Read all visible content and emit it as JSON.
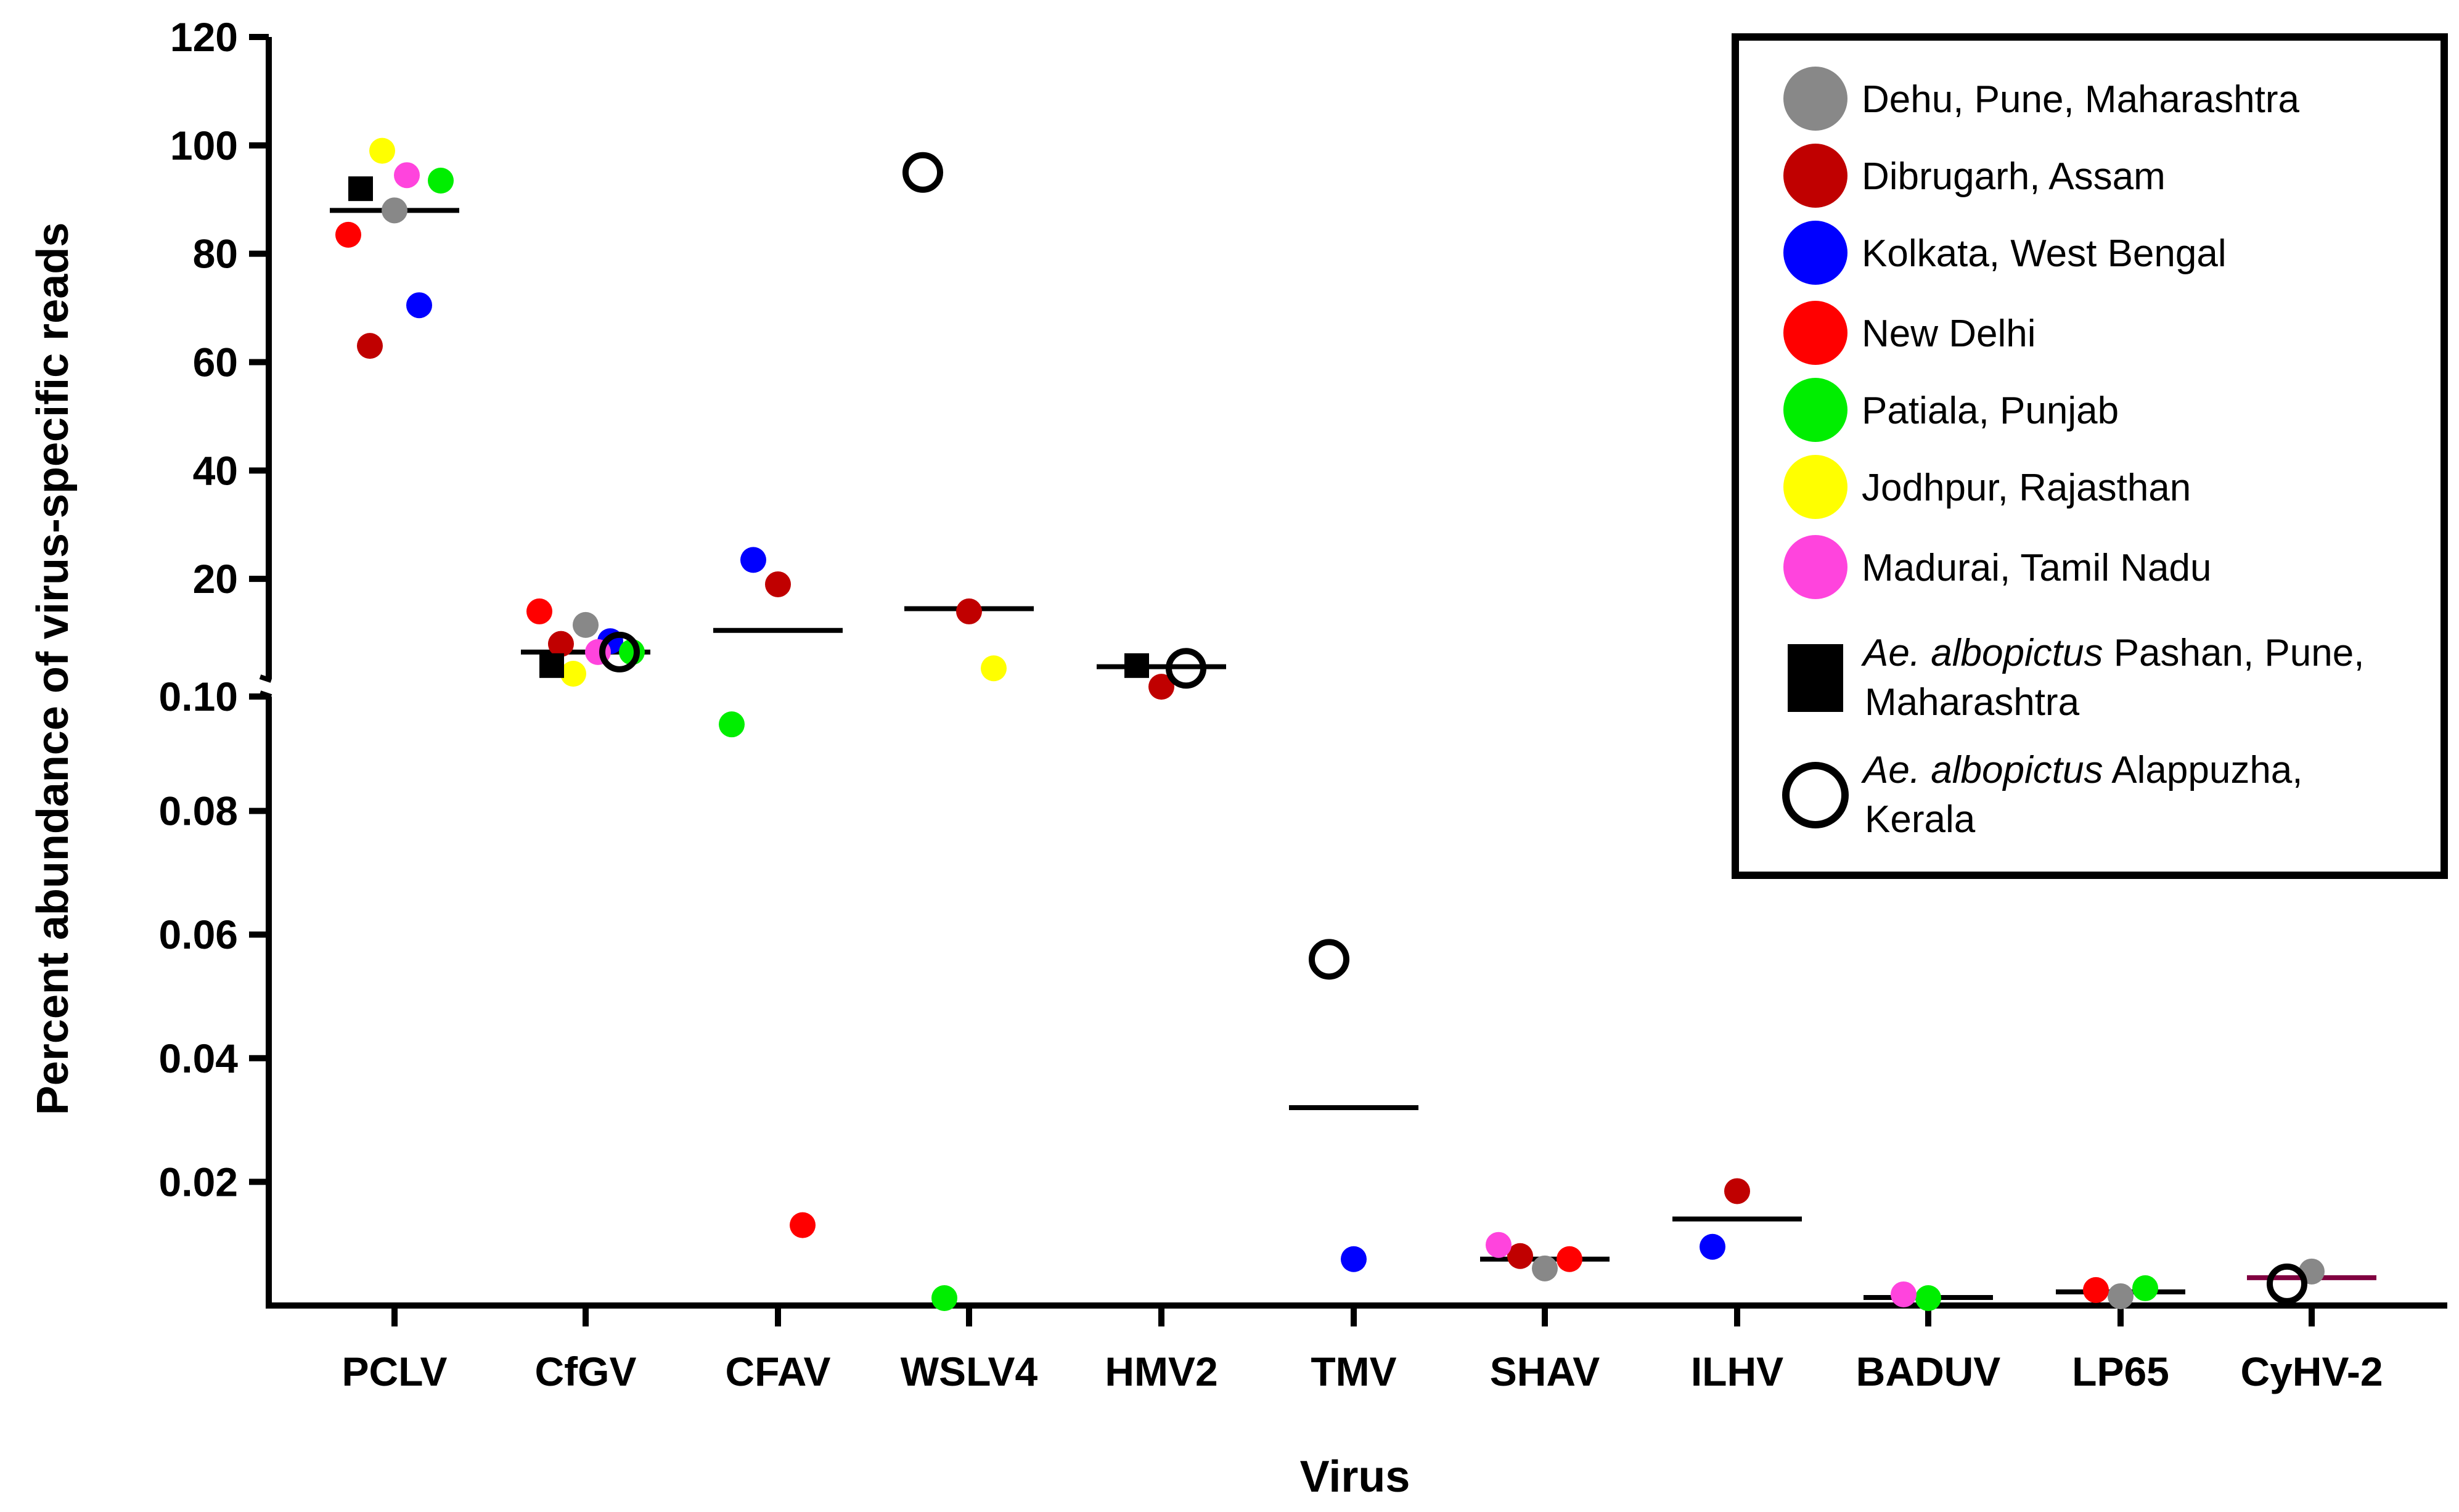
{
  "chart_data": {
    "type": "scatter",
    "title": "",
    "xlabel": "Virus",
    "ylabel": "Percent abundance of virus-specific reads",
    "axis_break": {
      "lower_range": [
        0,
        0.1
      ],
      "upper_range": [
        0.1,
        120
      ]
    },
    "y_ticks_lower": [
      "0.02",
      "0.04",
      "0.06",
      "0.08",
      "0.10"
    ],
    "y_ticks_upper": [
      "20",
      "40",
      "60",
      "80",
      "100",
      "120"
    ],
    "categories": [
      "PCLV",
      "CfGV",
      "CFAV",
      "WSLV4",
      "HMV2",
      "TMV",
      "SHAV",
      "ILHV",
      "BADUV",
      "LP65",
      "CyHV-2"
    ],
    "series": [
      {
        "name": "Dehu, Pune, Maharashtra",
        "color": "#888888",
        "marker": "circle",
        "points": [
          {
            "cat": "PCLV",
            "y": 88
          },
          {
            "cat": "CfGV",
            "y": 11.5
          },
          {
            "cat": "SHAV",
            "y": 0.006
          },
          {
            "cat": "LP65",
            "y": 0.0015
          },
          {
            "cat": "CyHV-2",
            "y": 0.0055
          }
        ]
      },
      {
        "name": "Dibrugarh, Assam",
        "color": "#c00000",
        "marker": "circle",
        "points": [
          {
            "cat": "PCLV",
            "y": 63
          },
          {
            "cat": "CfGV",
            "y": 8
          },
          {
            "cat": "CFAV",
            "y": 19
          },
          {
            "cat": "WSLV4",
            "y": 14
          },
          {
            "cat": "HMV2",
            "y": 0.1025
          },
          {
            "cat": "SHAV",
            "y": 0.008
          },
          {
            "cat": "ILHV",
            "y": 0.0185
          }
        ]
      },
      {
        "name": "Kolkata, West Bengal",
        "color": "#0000ff",
        "marker": "circle",
        "points": [
          {
            "cat": "PCLV",
            "y": 70.5
          },
          {
            "cat": "CfGV",
            "y": 8.5
          },
          {
            "cat": "CFAV",
            "y": 23.5
          },
          {
            "cat": "TMV",
            "y": 0.0075
          },
          {
            "cat": "ILHV",
            "y": 0.0095
          }
        ]
      },
      {
        "name": "New Delhi",
        "color": "#ff0000",
        "marker": "circle",
        "points": [
          {
            "cat": "PCLV",
            "y": 83.5
          },
          {
            "cat": "CfGV",
            "y": 14
          },
          {
            "cat": "CFAV",
            "y": 0.013
          },
          {
            "cat": "SHAV",
            "y": 0.0075
          },
          {
            "cat": "LP65",
            "y": 0.0025
          }
        ]
      },
      {
        "name": "Patiala, Punjab",
        "color": "#00ee00",
        "marker": "circle",
        "points": [
          {
            "cat": "PCLV",
            "y": 93.5
          },
          {
            "cat": "CfGV",
            "y": 6.5
          },
          {
            "cat": "CFAV",
            "y": 0.094
          },
          {
            "cat": "WSLV4",
            "y": 0.0012
          },
          {
            "cat": "BADUV",
            "y": 0.0012
          },
          {
            "cat": "LP65",
            "y": 0.0028
          }
        ]
      },
      {
        "name": "Jodhpur, Rajasthan",
        "color": "#ffff00",
        "marker": "circle",
        "points": [
          {
            "cat": "PCLV",
            "y": 99
          },
          {
            "cat": "CfGV",
            "y": 2.5
          },
          {
            "cat": "WSLV4",
            "y": 3.5
          }
        ]
      },
      {
        "name": "Madurai, Tamil Nadu",
        "color": "#ff44dd",
        "marker": "circle",
        "points": [
          {
            "cat": "PCLV",
            "y": 94.5
          },
          {
            "cat": "CfGV",
            "y": 6.5
          },
          {
            "cat": "SHAV",
            "y": 0.0098
          },
          {
            "cat": "BADUV",
            "y": 0.0018
          }
        ]
      },
      {
        "name": "Pashan, Pune, Maharashtra",
        "species": "Ae. albopictus",
        "color": "#000000",
        "marker": "square",
        "points": [
          {
            "cat": "PCLV",
            "y": 92
          },
          {
            "cat": "CfGV",
            "y": 4
          },
          {
            "cat": "HMV2",
            "y": 4
          }
        ]
      },
      {
        "name": "Alappuzha, Kerala",
        "species": "Ae. albopictus",
        "color": "#000000",
        "marker": "open-circle",
        "points": [
          {
            "cat": "WSLV4",
            "y": 95
          },
          {
            "cat": "CfGV",
            "y": 6.5
          },
          {
            "cat": "HMV2",
            "y": 3.5
          },
          {
            "cat": "TMV",
            "y": 0.056
          },
          {
            "cat": "CyHV-2",
            "y": 0.0035
          }
        ]
      }
    ],
    "means": [
      {
        "cat": "PCLV",
        "y": 88,
        "color": "#000000"
      },
      {
        "cat": "CfGV",
        "y": 6.5,
        "color": "#000000"
      },
      {
        "cat": "CFAV",
        "y": 10.5,
        "color": "#000000"
      },
      {
        "cat": "WSLV4",
        "y": 14.5,
        "color": "#000000"
      },
      {
        "cat": "HMV2",
        "y": 3.8,
        "color": "#000000"
      },
      {
        "cat": "TMV",
        "y": 0.032,
        "color": "#000000"
      },
      {
        "cat": "SHAV",
        "y": 0.0075,
        "color": "#000000"
      },
      {
        "cat": "ILHV",
        "y": 0.014,
        "color": "#000000"
      },
      {
        "cat": "BADUV",
        "y": 0.0013,
        "color": "#000000"
      },
      {
        "cat": "LP65",
        "y": 0.0022,
        "color": "#000000"
      },
      {
        "cat": "CyHV-2",
        "y": 0.0045,
        "color": "#800040"
      }
    ],
    "legend": {
      "position": "top-right",
      "items": [
        {
          "label": "Dehu, Pune, Maharashtra",
          "color": "#888888",
          "marker": "circle"
        },
        {
          "label": "Dibrugarh, Assam",
          "color": "#c00000",
          "marker": "circle"
        },
        {
          "label": "Kolkata, West Bengal",
          "color": "#0000ff",
          "marker": "circle"
        },
        {
          "label": "New Delhi",
          "color": "#ff0000",
          "marker": "circle"
        },
        {
          "label": "Patiala, Punjab",
          "color": "#00ee00",
          "marker": "circle"
        },
        {
          "label": "Jodhpur, Rajasthan",
          "color": "#ffff00",
          "marker": "circle"
        },
        {
          "label": "Madurai, Tamil Nadu",
          "color": "#ff44dd",
          "marker": "circle"
        },
        {
          "species": "Ae. albopictus",
          "line1": "Pashan, Pune,",
          "line2": "Maharashtra",
          "color": "#000000",
          "marker": "square"
        },
        {
          "species": "Ae. albopictus",
          "line1": "Alappuzha,",
          "line2": "Kerala",
          "color": "#000000",
          "marker": "open-circle"
        }
      ]
    }
  }
}
